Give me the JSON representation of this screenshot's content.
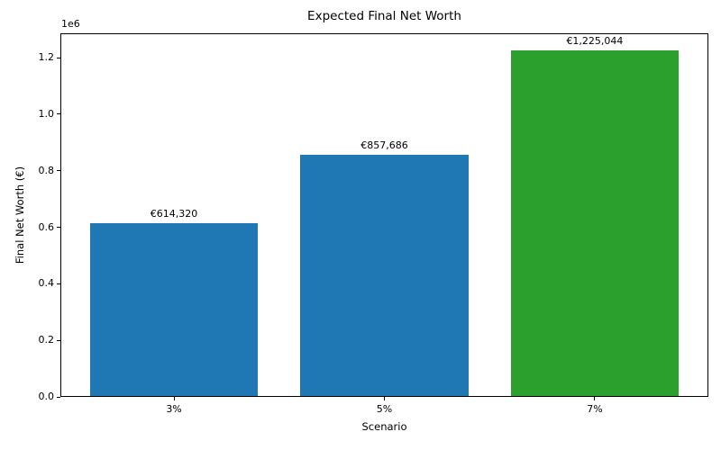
{
  "chart_data": {
    "type": "bar",
    "title": "Expected Final Net Worth",
    "xlabel": "Scenario",
    "ylabel": "Final Net Worth (€)",
    "categories": [
      "3%",
      "5%",
      "7%"
    ],
    "values": [
      614320,
      857686,
      1225044
    ],
    "bar_labels": [
      "€614,320",
      "€857,686",
      "€1,225,044"
    ],
    "bar_colors": [
      "#1f77b4",
      "#1f77b4",
      "#2ca02c"
    ],
    "ylim": [
      0,
      1286296
    ],
    "yticks": [
      0,
      200000,
      400000,
      600000,
      800000,
      1000000,
      1200000
    ],
    "ytick_labels": [
      "0.0",
      "0.2",
      "0.4",
      "0.6",
      "0.8",
      "1.0",
      "1.2"
    ],
    "offset_text": "1e6",
    "bar_width_fraction": 0.8,
    "grid": false,
    "legend": null,
    "background_color": "#ffffff",
    "spine_color": "#000000"
  }
}
